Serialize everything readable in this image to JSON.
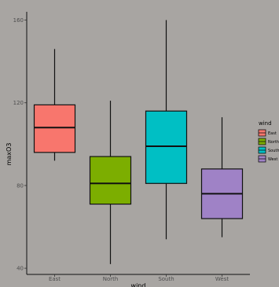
{
  "chart_data": {
    "type": "box",
    "title": "",
    "xlabel": "wind",
    "ylabel": "maxO3",
    "ylim": [
      37,
      164
    ],
    "yticks": [
      40,
      80,
      120,
      160
    ],
    "categories": [
      "East",
      "North",
      "South",
      "West"
    ],
    "boxes": [
      {
        "category": "East",
        "min": 92,
        "q1": 96,
        "median": 108,
        "q3": 119,
        "max": 146,
        "color": "#f8766d"
      },
      {
        "category": "North",
        "min": 42,
        "q1": 71,
        "median": 81,
        "q3": 94,
        "max": 121,
        "color": "#7cae00"
      },
      {
        "category": "South",
        "min": 54,
        "q1": 81,
        "median": 99,
        "q3": 116,
        "max": 160,
        "color": "#00bfc4"
      },
      {
        "category": "West",
        "min": 55,
        "q1": 64,
        "median": 76,
        "q3": 88,
        "max": 113,
        "color": "#9f82c6"
      }
    ],
    "legend": {
      "title": "wind",
      "entries": [
        "East",
        "North",
        "South",
        "West"
      ],
      "position": "right"
    },
    "grid": false
  }
}
